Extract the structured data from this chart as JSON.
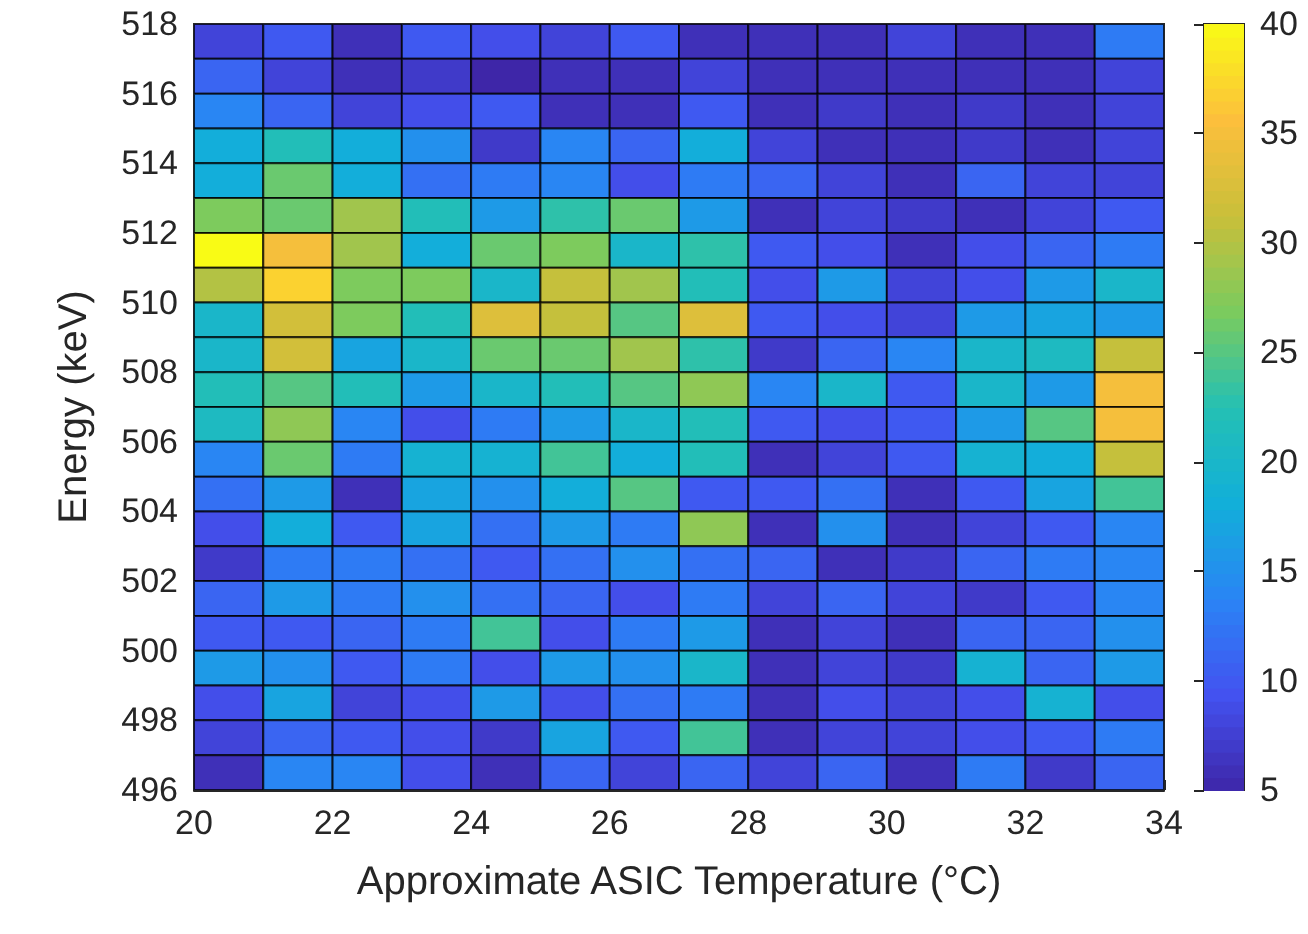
{
  "chart_data": {
    "type": "heatmap",
    "xlabel": "Approximate ASIC Temperature (°C)",
    "ylabel": "Energy (keV)",
    "x": [
      20.5,
      21.5,
      22.5,
      23.5,
      24.5,
      25.5,
      26.5,
      27.5,
      28.5,
      29.5,
      30.5,
      31.5,
      32.5,
      33.5
    ],
    "xlim": [
      20,
      34
    ],
    "xticks": [
      20,
      22,
      24,
      26,
      28,
      30,
      32,
      34
    ],
    "ylim": [
      496,
      518
    ],
    "yticks": [
      496,
      498,
      500,
      502,
      504,
      506,
      508,
      510,
      512,
      514,
      516,
      518
    ],
    "clim": [
      5,
      40
    ],
    "cticks": [
      5,
      10,
      15,
      20,
      25,
      30,
      35,
      40
    ],
    "cells": [
      [
        8,
        10,
        6,
        10,
        9,
        8,
        10,
        6,
        6,
        6,
        8,
        6,
        6,
        13
      ],
      [
        11,
        8,
        6,
        7,
        5,
        6,
        6,
        8,
        6,
        6,
        6,
        6,
        6,
        8
      ],
      [
        14,
        11,
        8,
        9,
        10,
        6,
        6,
        10,
        6,
        7,
        6,
        7,
        6,
        8
      ],
      [
        18,
        22,
        18,
        15,
        7,
        14,
        11,
        18,
        8,
        6,
        6,
        7,
        6,
        8
      ],
      [
        18,
        26,
        18,
        12,
        13,
        14,
        9,
        13,
        11,
        8,
        6,
        11,
        8,
        8
      ],
      [
        27,
        26,
        29,
        22,
        16,
        23,
        26,
        16,
        6,
        8,
        7,
        6,
        8,
        10
      ],
      [
        40,
        35,
        29,
        18,
        26,
        27,
        20,
        23,
        10,
        9,
        6,
        9,
        11,
        13
      ],
      [
        30,
        37,
        27,
        27,
        20,
        31,
        29,
        22,
        9,
        16,
        8,
        9,
        16,
        20
      ],
      [
        20,
        32,
        27,
        22,
        33,
        31,
        25,
        33,
        10,
        9,
        8,
        16,
        17,
        16
      ],
      [
        20,
        32,
        17,
        20,
        26,
        26,
        29,
        23,
        7,
        11,
        14,
        20,
        21,
        31
      ],
      [
        22,
        25,
        22,
        16,
        20,
        22,
        25,
        28,
        14,
        20,
        10,
        20,
        16,
        35
      ],
      [
        21,
        28,
        14,
        9,
        13,
        16,
        20,
        22,
        10,
        9,
        10,
        16,
        25,
        35
      ],
      [
        14,
        26,
        13,
        19,
        19,
        24,
        18,
        22,
        6,
        8,
        10,
        19,
        18,
        31
      ],
      [
        12,
        16,
        6,
        17,
        15,
        18,
        25,
        10,
        10,
        12,
        6,
        10,
        17,
        24
      ],
      [
        9,
        18,
        10,
        17,
        12,
        16,
        13,
        28,
        6,
        15,
        6,
        8,
        10,
        14
      ],
      [
        7,
        13,
        13,
        12,
        10,
        12,
        15,
        12,
        11,
        6,
        7,
        11,
        13,
        14
      ],
      [
        11,
        16,
        13,
        15,
        12,
        11,
        9,
        13,
        8,
        11,
        8,
        7,
        10,
        14
      ],
      [
        10,
        10,
        11,
        13,
        24,
        9,
        13,
        16,
        6,
        8,
        6,
        11,
        11,
        15
      ],
      [
        16,
        15,
        10,
        13,
        9,
        16,
        15,
        20,
        6,
        8,
        7,
        19,
        11,
        16
      ],
      [
        9,
        17,
        8,
        9,
        16,
        9,
        12,
        13,
        6,
        9,
        8,
        9,
        19,
        9
      ],
      [
        8,
        11,
        10,
        9,
        7,
        17,
        10,
        24,
        6,
        8,
        8,
        9,
        10,
        13
      ],
      [
        6,
        14,
        14,
        9,
        6,
        11,
        8,
        11,
        8,
        11,
        6,
        13,
        7,
        11
      ]
    ]
  }
}
